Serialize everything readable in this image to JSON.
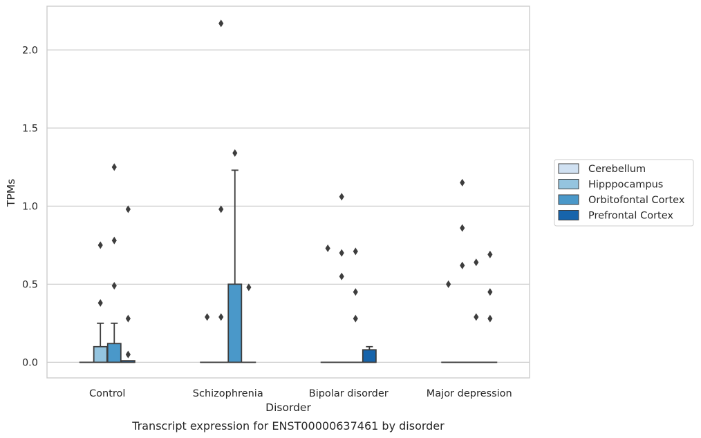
{
  "chart_data": {
    "type": "box",
    "title": "",
    "caption": "Transcript expression for ENST00000637461 by disorder",
    "xlabel": "Disorder",
    "ylabel": "TPMs",
    "categories": [
      "Control",
      "Schizophrenia",
      "Bipolar disorder",
      "Major depression"
    ],
    "ylim": [
      -0.1,
      2.28
    ],
    "yticks": [
      "0.0",
      "0.5",
      "1.0",
      "1.5",
      "2.0"
    ],
    "grid": "horizontal",
    "legend_position": "right",
    "series": [
      {
        "name": "Cerebellum",
        "color": "#d0e1f2",
        "boxes": [
          {
            "q1": 0,
            "median": 0,
            "q3": 0,
            "whisker_low": 0,
            "whisker_high": 0,
            "outliers": []
          },
          {
            "q1": 0,
            "median": 0,
            "q3": 0,
            "whisker_low": 0,
            "whisker_high": 0,
            "outliers": [
              0.29
            ]
          },
          {
            "q1": 0,
            "median": 0,
            "q3": 0,
            "whisker_low": 0,
            "whisker_high": 0,
            "outliers": [
              0.73
            ]
          },
          {
            "q1": 0,
            "median": 0,
            "q3": 0,
            "whisker_low": 0,
            "whisker_high": 0,
            "outliers": [
              0.5
            ]
          }
        ]
      },
      {
        "name": "Hipppocampus",
        "color": "#94c4df",
        "boxes": [
          {
            "q1": 0,
            "median": 0,
            "q3": 0.1,
            "whisker_low": 0,
            "whisker_high": 0.25,
            "outliers": [
              0.38,
              0.75
            ]
          },
          {
            "q1": 0,
            "median": 0,
            "q3": 0,
            "whisker_low": 0,
            "whisker_high": 0,
            "outliers": [
              0.29,
              0.98,
              2.17
            ]
          },
          {
            "q1": 0,
            "median": 0,
            "q3": 0,
            "whisker_low": 0,
            "whisker_high": 0,
            "outliers": [
              0.55,
              0.7,
              1.06
            ]
          },
          {
            "q1": 0,
            "median": 0,
            "q3": 0,
            "whisker_low": 0,
            "whisker_high": 0,
            "outliers": [
              0.62,
              0.86,
              1.15
            ]
          }
        ]
      },
      {
        "name": "Orbitofontal Cortex",
        "color": "#4a98c9",
        "boxes": [
          {
            "q1": 0,
            "median": 0,
            "q3": 0.12,
            "whisker_low": 0,
            "whisker_high": 0.25,
            "outliers": [
              0.49,
              0.78,
              1.25
            ]
          },
          {
            "q1": 0,
            "median": 0,
            "q3": 0.5,
            "whisker_low": 0,
            "whisker_high": 1.23,
            "outliers": [
              1.34
            ]
          },
          {
            "q1": 0,
            "median": 0,
            "q3": 0,
            "whisker_low": 0,
            "whisker_high": 0,
            "outliers": [
              0.28,
              0.45,
              0.71
            ]
          },
          {
            "q1": 0,
            "median": 0,
            "q3": 0,
            "whisker_low": 0,
            "whisker_high": 0,
            "outliers": [
              0.29,
              0.64
            ]
          }
        ]
      },
      {
        "name": "Prefrontal Cortex",
        "color": "#1764ab",
        "boxes": [
          {
            "q1": 0,
            "median": 0,
            "q3": 0.01,
            "whisker_low": 0,
            "whisker_high": 0.01,
            "outliers": [
              0.05,
              0.28,
              0.98
            ]
          },
          {
            "q1": 0,
            "median": 0,
            "q3": 0,
            "whisker_low": 0,
            "whisker_high": 0,
            "outliers": [
              0.48
            ]
          },
          {
            "q1": 0,
            "median": 0,
            "q3": 0.08,
            "whisker_low": 0,
            "whisker_high": 0.1,
            "outliers": []
          },
          {
            "q1": 0,
            "median": 0,
            "q3": 0,
            "whisker_low": 0,
            "whisker_high": 0,
            "outliers": [
              0.28,
              0.45,
              0.69
            ]
          }
        ]
      }
    ]
  }
}
